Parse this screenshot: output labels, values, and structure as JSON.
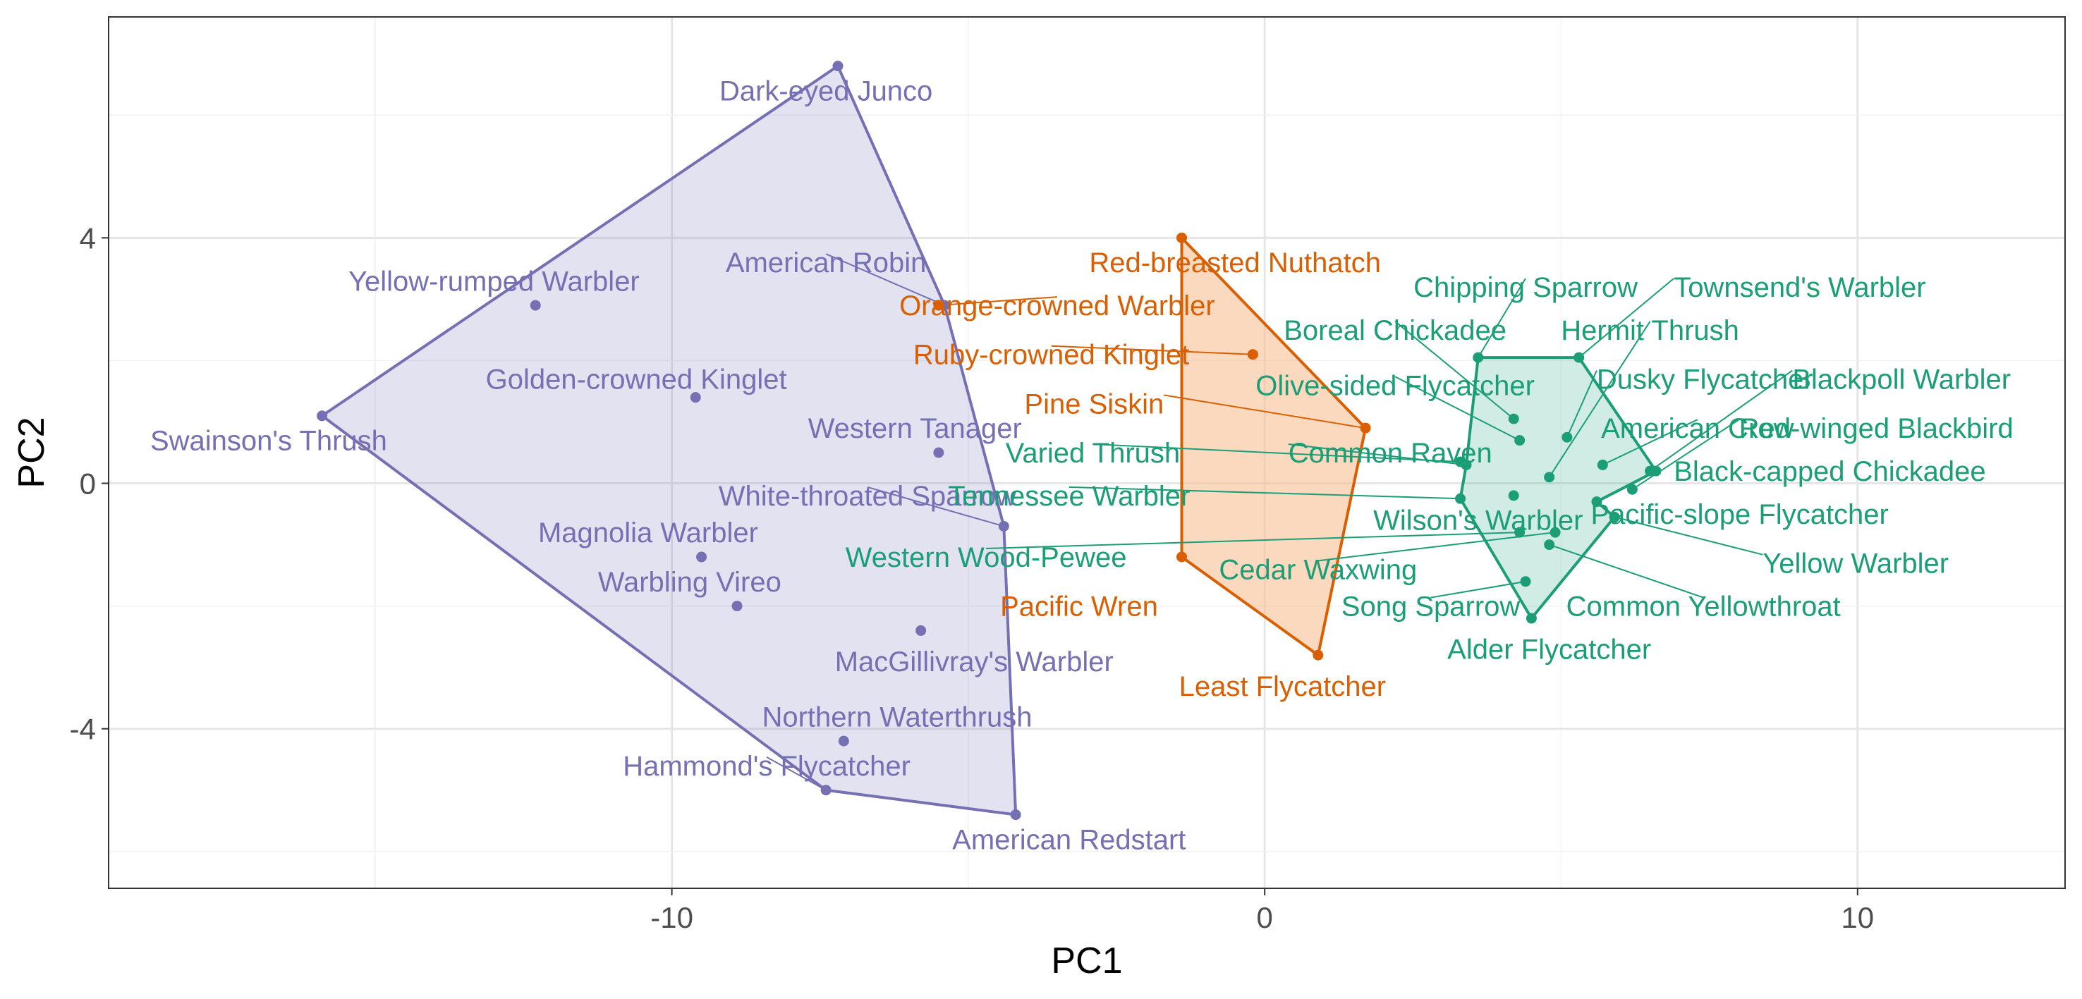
{
  "chart_data": {
    "type": "scatter",
    "xlabel": "PC1",
    "ylabel": "PC2",
    "xlim": [
      -19.5,
      13.5
    ],
    "ylim": [
      -6.6,
      7.6
    ],
    "xticks": [
      {
        "value": -10,
        "label": "-10"
      },
      {
        "value": 0,
        "label": "0"
      },
      {
        "value": 10,
        "label": "10"
      }
    ],
    "yticks": [
      {
        "value": -4,
        "label": "-4"
      },
      {
        "value": 0,
        "label": "0"
      },
      {
        "value": 4,
        "label": "4"
      }
    ],
    "grid": true,
    "legend": "none",
    "groups": [
      {
        "id": "purple",
        "color": "#7570b3",
        "fill": "#7570b3",
        "hull": [
          "Dark-eyed Junco",
          "Swainson's Thrush",
          "Hammond's Flycatcher",
          "American Redstart",
          "White-throated Sparrow",
          "American Robin"
        ],
        "points": [
          {
            "label": "Dark-eyed Junco",
            "x": -7.2,
            "y": 6.8,
            "lx": -7.4,
            "ly": 6.4,
            "anchor": "middle"
          },
          {
            "label": "Yellow-rumped Warbler",
            "x": -12.3,
            "y": 2.9,
            "lx": -13.0,
            "ly": 3.3,
            "anchor": "middle"
          },
          {
            "label": "American Robin",
            "x": -5.4,
            "y": 2.9,
            "lx": -7.4,
            "ly": 3.6,
            "anchor": "middle"
          },
          {
            "label": "Golden-crowned Kinglet",
            "x": -9.6,
            "y": 1.4,
            "lx": -10.6,
            "ly": 1.7,
            "anchor": "middle"
          },
          {
            "label": "Swainson's Thrush",
            "x": -15.9,
            "y": 1.1,
            "lx": -16.8,
            "ly": 0.7,
            "anchor": "middle"
          },
          {
            "label": "Western Tanager",
            "x": -5.5,
            "y": 0.5,
            "lx": -5.9,
            "ly": 0.9,
            "anchor": "middle"
          },
          {
            "label": "White-throated Sparrow",
            "x": -4.4,
            "y": -0.7,
            "lx": -6.7,
            "ly": -0.2,
            "anchor": "middle"
          },
          {
            "label": "Magnolia Warbler",
            "x": -9.5,
            "y": -1.2,
            "lx": -10.4,
            "ly": -0.8,
            "anchor": "middle"
          },
          {
            "label": "Warbling Vireo",
            "x": -8.9,
            "y": -2.0,
            "lx": -9.7,
            "ly": -1.6,
            "anchor": "middle"
          },
          {
            "label": "MacGillivray's Warbler",
            "x": -5.8,
            "y": -2.4,
            "lx": -4.9,
            "ly": -2.9,
            "anchor": "middle"
          },
          {
            "label": "Northern Waterthrush",
            "x": -7.1,
            "y": -4.2,
            "lx": -6.2,
            "ly": -3.8,
            "anchor": "middle"
          },
          {
            "label": "Hammond's Flycatcher",
            "x": -7.4,
            "y": -5.0,
            "lx": -8.4,
            "ly": -4.6,
            "anchor": "middle"
          },
          {
            "label": "American Redstart",
            "x": -4.2,
            "y": -5.4,
            "lx": -3.3,
            "ly": -5.8,
            "anchor": "middle"
          }
        ]
      },
      {
        "id": "orange",
        "color": "#d95f02",
        "fill": "#f5b98a",
        "hull": [
          "Red-breasted Nuthatch",
          "Pine Siskin",
          "Least Flycatcher",
          "Pacific Wren"
        ],
        "points": [
          {
            "label": "Red-breasted Nuthatch",
            "x": -1.4,
            "y": 4.0,
            "lx": -0.5,
            "ly": 3.6,
            "anchor": "middle"
          },
          {
            "label": "Orange-crowned Warbler",
            "x": -5.5,
            "y": 2.9,
            "lx": -3.5,
            "ly": 2.9,
            "anchor": "middle"
          },
          {
            "label": "Ruby-crowned Kinglet",
            "x": -0.2,
            "y": 2.1,
            "lx": -3.6,
            "ly": 2.1,
            "anchor": "middle"
          },
          {
            "label": "Pine Siskin",
            "x": 1.7,
            "y": 0.9,
            "lx": -1.7,
            "ly": 1.3,
            "anchor": "end"
          },
          {
            "label": "Pacific Wren",
            "x": -1.4,
            "y": -1.2,
            "lx": -1.8,
            "ly": -2.0,
            "anchor": "end"
          },
          {
            "label": "Least Flycatcher",
            "x": 0.9,
            "y": -2.8,
            "lx": 0.3,
            "ly": -3.3,
            "anchor": "middle"
          }
        ]
      },
      {
        "id": "green",
        "color": "#1b9e77",
        "fill": "#1b9e77",
        "hull": [
          "Chipping Sparrow",
          "Townsend's Warbler",
          "Black-capped Chickadee",
          "Pacific-slope Flycatcher",
          "Yellow Warbler",
          "Alder Flycatcher",
          "Tennessee Warbler",
          "Common Raven"
        ],
        "points": [
          {
            "label": "Chipping Sparrow",
            "x": 3.6,
            "y": 2.05,
            "lx": 4.4,
            "ly": 3.2,
            "anchor": "middle"
          },
          {
            "label": "Townsend's Warbler",
            "x": 5.3,
            "y": 2.05,
            "lx": 6.9,
            "ly": 3.2,
            "anchor": "start"
          },
          {
            "label": "Boreal Chickadee",
            "x": 4.2,
            "y": 1.05,
            "lx": 2.2,
            "ly": 2.5,
            "anchor": "middle"
          },
          {
            "label": "Hermit Thrush",
            "x": 4.8,
            "y": 0.1,
            "lx": 6.5,
            "ly": 2.5,
            "anchor": "middle"
          },
          {
            "label": "Dusky Flycatcher",
            "x": 5.1,
            "y": 0.75,
            "lx": 5.6,
            "ly": 1.7,
            "anchor": "start"
          },
          {
            "label": "Blackpoll Warbler",
            "x": 6.5,
            "y": 0.2,
            "lx": 8.9,
            "ly": 1.7,
            "anchor": "start"
          },
          {
            "label": "Olive-sided Flycatcher",
            "x": 4.3,
            "y": 0.7,
            "lx": 2.2,
            "ly": 1.6,
            "anchor": "middle"
          },
          {
            "label": "American Crow",
            "x": 5.7,
            "y": 0.3,
            "lx": 7.3,
            "ly": 0.9,
            "anchor": "middle"
          },
          {
            "label": "Red-winged Blackbird",
            "x": 6.2,
            "y": -0.1,
            "lx": 8.0,
            "ly": 0.9,
            "anchor": "start"
          },
          {
            "label": "Common Raven",
            "x": 3.4,
            "y": 0.3,
            "lx": 0.4,
            "ly": 0.5,
            "anchor": "start"
          },
          {
            "label": "Varied Thrush",
            "x": 3.3,
            "y": 0.35,
            "lx": -2.9,
            "ly": 0.5,
            "anchor": "middle"
          },
          {
            "label": "Black-capped Chickadee",
            "x": 6.6,
            "y": 0.2,
            "lx": 6.9,
            "ly": 0.2,
            "anchor": "start"
          },
          {
            "label": "Tennessee Warbler",
            "x": 3.3,
            "y": -0.25,
            "lx": -3.3,
            "ly": -0.2,
            "anchor": "middle"
          },
          {
            "label": "Wilson's Warbler",
            "x": 4.2,
            "y": -0.2,
            "lx": 3.6,
            "ly": -0.6,
            "anchor": "middle"
          },
          {
            "label": "Pacific-slope Flycatcher",
            "x": 5.6,
            "y": -0.3,
            "lx": 5.5,
            "ly": -0.5,
            "anchor": "start"
          },
          {
            "label": "Yellow Warbler",
            "x": 5.9,
            "y": -0.55,
            "lx": 8.4,
            "ly": -1.3,
            "anchor": "start"
          },
          {
            "label": "Western Wood-Pewee",
            "x": 4.3,
            "y": -0.8,
            "lx": -4.7,
            "ly": -1.2,
            "anchor": "middle"
          },
          {
            "label": "Cedar Waxwing",
            "x": 4.9,
            "y": -0.8,
            "lx": 0.9,
            "ly": -1.4,
            "anchor": "middle"
          },
          {
            "label": "Common Yellowthroat",
            "x": 4.8,
            "y": -1.0,
            "lx": 7.4,
            "ly": -2.0,
            "anchor": "middle"
          },
          {
            "label": "Song Sparrow",
            "x": 4.4,
            "y": -1.6,
            "lx": 2.8,
            "ly": -2.0,
            "anchor": "middle"
          },
          {
            "label": "Alder Flycatcher",
            "x": 4.5,
            "y": -2.2,
            "lx": 4.8,
            "ly": -2.7,
            "anchor": "middle"
          }
        ]
      }
    ]
  }
}
